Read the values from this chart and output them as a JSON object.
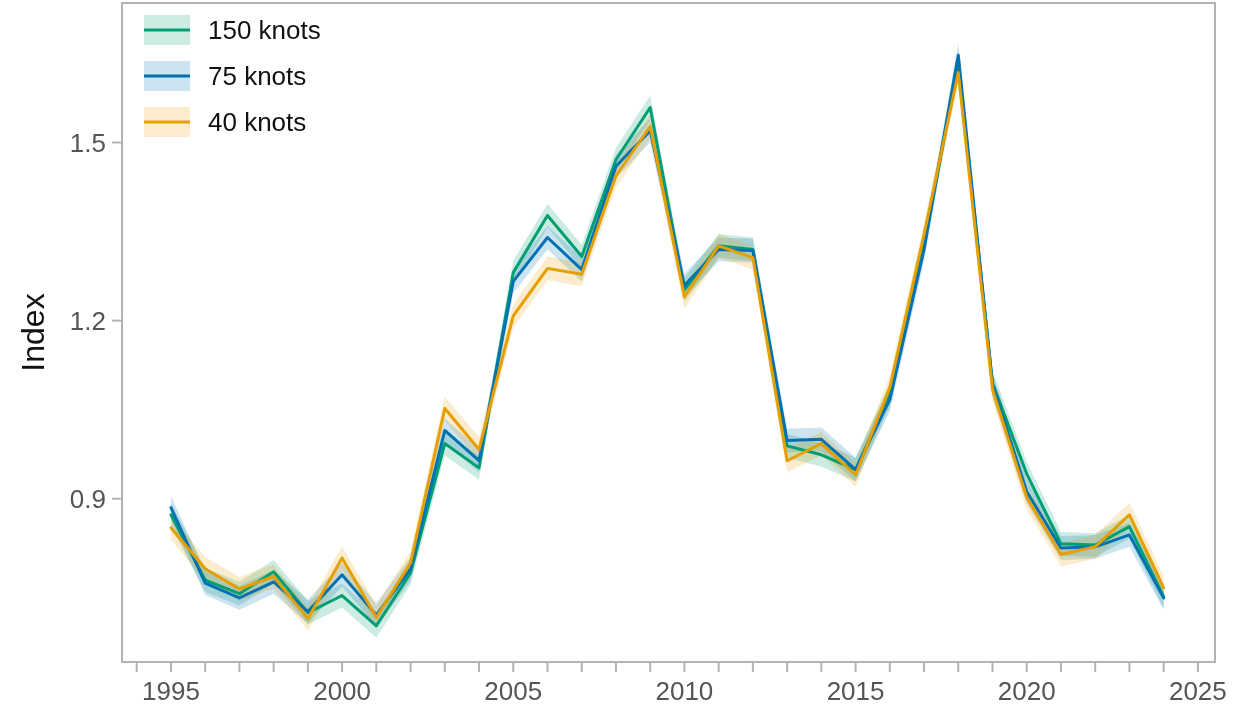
{
  "chart_data": {
    "type": "line",
    "ylabel": "Index",
    "legend": "top left",
    "grid": false,
    "line_style": "solid",
    "marker": "none",
    "x": [
      1995,
      1996,
      1997,
      1998,
      1999,
      2000,
      2001,
      2002,
      2003,
      2004,
      2005,
      2006,
      2007,
      2008,
      2009,
      2010,
      2011,
      2012,
      2013,
      2014,
      2015,
      2016,
      2017,
      2018,
      2019,
      2020,
      2021,
      2022,
      2023,
      2024
    ],
    "xlim": [
      1993.57,
      2025.5
    ],
    "xticks": [
      {
        "value": 1994,
        "label": null
      },
      1995,
      {
        "value": 1996,
        "label": null
      },
      {
        "value": 1997,
        "label": null
      },
      {
        "value": 1998,
        "label": null
      },
      {
        "value": 1999,
        "label": null
      },
      2000,
      {
        "value": 2001,
        "label": null
      },
      {
        "value": 2002,
        "label": null
      },
      {
        "value": 2003,
        "label": null
      },
      {
        "value": 2004,
        "label": null
      },
      2005,
      {
        "value": 2006,
        "label": null
      },
      {
        "value": 2007,
        "label": null
      },
      {
        "value": 2008,
        "label": null
      },
      {
        "value": 2009,
        "label": null
      },
      2010,
      {
        "value": 2011,
        "label": null
      },
      {
        "value": 2012,
        "label": null
      },
      {
        "value": 2013,
        "label": null
      },
      {
        "value": 2014,
        "label": null
      },
      2015,
      {
        "value": 2016,
        "label": null
      },
      {
        "value": 2017,
        "label": null
      },
      {
        "value": 2018,
        "label": null
      },
      {
        "value": 2019,
        "label": null
      },
      2020,
      {
        "value": 2021,
        "label": null
      },
      {
        "value": 2022,
        "label": null
      },
      {
        "value": 2023,
        "label": null
      },
      {
        "value": 2024,
        "label": null
      },
      2025
    ],
    "ylim": [
      0.625,
      1.735
    ],
    "yticks": [
      0.9,
      1.2,
      1.5
    ],
    "series": [
      {
        "name": "150 knots",
        "color": "#009e73",
        "values": [
          0.873,
          0.763,
          0.74,
          0.777,
          0.708,
          0.737,
          0.686,
          0.775,
          0.993,
          0.952,
          1.281,
          1.377,
          1.308,
          1.471,
          1.559,
          1.252,
          1.326,
          1.32,
          0.989,
          0.974,
          0.949,
          1.075,
          1.33,
          1.632,
          1.095,
          0.942,
          0.824,
          0.822,
          0.853,
          0.735
        ],
        "lower": [
          0.853,
          0.743,
          0.72,
          0.757,
          0.688,
          0.717,
          0.666,
          0.755,
          0.973,
          0.932,
          1.261,
          1.357,
          1.288,
          1.451,
          1.539,
          1.232,
          1.306,
          1.3,
          0.969,
          0.954,
          0.929,
          1.055,
          1.31,
          1.612,
          1.075,
          0.922,
          0.804,
          0.802,
          0.833,
          0.715
        ],
        "upper": [
          0.893,
          0.783,
          0.76,
          0.797,
          0.728,
          0.757,
          0.706,
          0.795,
          1.013,
          0.972,
          1.301,
          1.397,
          1.328,
          1.491,
          1.579,
          1.272,
          1.346,
          1.34,
          1.009,
          0.994,
          0.969,
          1.095,
          1.35,
          1.652,
          1.115,
          0.962,
          0.844,
          0.842,
          0.873,
          0.755
        ]
      },
      {
        "name": "75 knots",
        "color": "#0072b2",
        "values": [
          0.885,
          0.758,
          0.733,
          0.76,
          0.71,
          0.772,
          0.704,
          0.782,
          1.015,
          0.964,
          1.266,
          1.34,
          1.286,
          1.46,
          1.52,
          1.259,
          1.32,
          1.318,
          0.998,
          1.0,
          0.949,
          1.067,
          1.32,
          1.647,
          1.092,
          0.912,
          0.817,
          0.819,
          0.839,
          0.733
        ],
        "lower": [
          0.865,
          0.738,
          0.713,
          0.74,
          0.69,
          0.752,
          0.684,
          0.762,
          0.995,
          0.944,
          1.246,
          1.32,
          1.266,
          1.44,
          1.5,
          1.239,
          1.3,
          1.298,
          0.978,
          0.98,
          0.929,
          1.047,
          1.3,
          1.627,
          1.072,
          0.892,
          0.797,
          0.799,
          0.819,
          0.713
        ],
        "upper": [
          0.905,
          0.778,
          0.753,
          0.78,
          0.73,
          0.792,
          0.724,
          0.802,
          1.035,
          0.984,
          1.286,
          1.36,
          1.306,
          1.48,
          1.54,
          1.279,
          1.34,
          1.338,
          1.018,
          1.02,
          0.969,
          1.087,
          1.34,
          1.667,
          1.112,
          0.932,
          0.837,
          0.839,
          0.859,
          0.753
        ]
      },
      {
        "name": "40 knots",
        "color": "#e69f00",
        "values": [
          0.851,
          0.782,
          0.748,
          0.769,
          0.698,
          0.8,
          0.7,
          0.792,
          1.052,
          0.983,
          1.208,
          1.288,
          1.278,
          1.444,
          1.527,
          1.24,
          1.326,
          1.306,
          0.964,
          0.993,
          0.94,
          1.087,
          1.345,
          1.618,
          1.084,
          0.902,
          0.806,
          0.819,
          0.873,
          0.75
        ],
        "lower": [
          0.831,
          0.762,
          0.728,
          0.749,
          0.678,
          0.78,
          0.68,
          0.772,
          1.032,
          0.963,
          1.188,
          1.268,
          1.258,
          1.424,
          1.507,
          1.22,
          1.306,
          1.286,
          0.944,
          0.973,
          0.92,
          1.067,
          1.325,
          1.598,
          1.064,
          0.882,
          0.786,
          0.799,
          0.853,
          0.73
        ],
        "upper": [
          0.871,
          0.802,
          0.768,
          0.789,
          0.718,
          0.82,
          0.72,
          0.812,
          1.072,
          1.003,
          1.228,
          1.308,
          1.298,
          1.464,
          1.547,
          1.26,
          1.346,
          1.326,
          0.984,
          1.013,
          0.96,
          1.107,
          1.365,
          1.638,
          1.104,
          0.922,
          0.826,
          0.839,
          0.893,
          0.77
        ]
      }
    ]
  }
}
